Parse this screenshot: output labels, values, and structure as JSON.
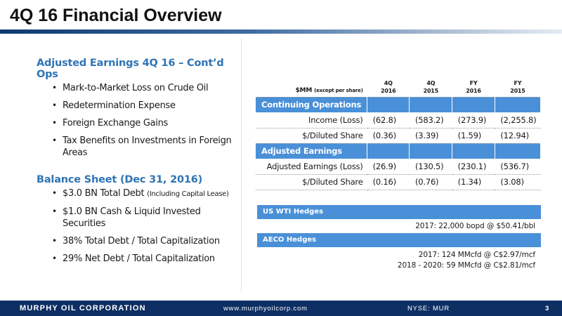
{
  "slide": {
    "title": "4Q 16 Financial Overview",
    "page_number": "3"
  },
  "left": {
    "earnings": {
      "heading": "Adjusted Earnings 4Q 16 – Cont’d Ops",
      "items": [
        "Mark-to-Market Loss on Crude Oil",
        "Redetermination Expense",
        "Foreign Exchange Gains",
        "Tax Benefits on Investments in Foreign Areas"
      ]
    },
    "balance": {
      "heading": "Balance Sheet (Dec 31, 2016)",
      "item0_main": "$3.0 BN Total Debt",
      "item0_note": "(Including Capital Lease)",
      "items": [
        "$1.0 BN Cash & Liquid Invested Securities",
        "38% Total Debt / Total Capitalization",
        "29% Net Debt / Total Capitalization"
      ]
    }
  },
  "table": {
    "header_label": "$MM",
    "header_note": "(except per share)",
    "columns": [
      {
        "line1": "4Q",
        "line2": "2016"
      },
      {
        "line1": "4Q",
        "line2": "2015"
      },
      {
        "line1": "FY",
        "line2": "2016"
      },
      {
        "line1": "FY",
        "line2": "2015"
      }
    ],
    "continuing": {
      "heading": "Continuing Operations",
      "rows": [
        {
          "label": "Income (Loss)",
          "values": [
            "(62.8)",
            "(583.2)",
            "(273.9)",
            "(2,255.8)"
          ]
        },
        {
          "label": "$/Diluted Share",
          "values": [
            "(0.36)",
            "(3.39)",
            "(1.59)",
            "(12.94)"
          ]
        }
      ]
    },
    "adjusted": {
      "heading": "Adjusted Earnings",
      "rows": [
        {
          "label": "Adjusted Earnings (Loss)",
          "values": [
            "(26.9)",
            "(130.5)",
            "(230.1)",
            "(536.7)"
          ]
        },
        {
          "label": "$/Diluted Share",
          "values": [
            "(0.16)",
            "(0.76)",
            "(1.34)",
            "(3.08)"
          ]
        }
      ]
    }
  },
  "hedges": {
    "wti": {
      "heading": "US WTI Hedges",
      "lines": [
        "2017:  22,000 bopd @ $50.41/bbl"
      ]
    },
    "aeco": {
      "heading": "AECO Hedges",
      "lines": [
        "2017:  124 MMcfd @ C$2.97/mcf",
        "2018 - 2020:  59 MMcfd @ C$2.81/mcf"
      ]
    }
  },
  "footer": {
    "company": "MURPHY OIL CORPORATION",
    "website": "www.murphyoilcorp.com",
    "ticker": "NYSE: MUR"
  },
  "colors": {
    "accent_blue": "#4a90d8",
    "heading_blue": "#2e74b5",
    "footer_navy": "#0e2f63"
  }
}
